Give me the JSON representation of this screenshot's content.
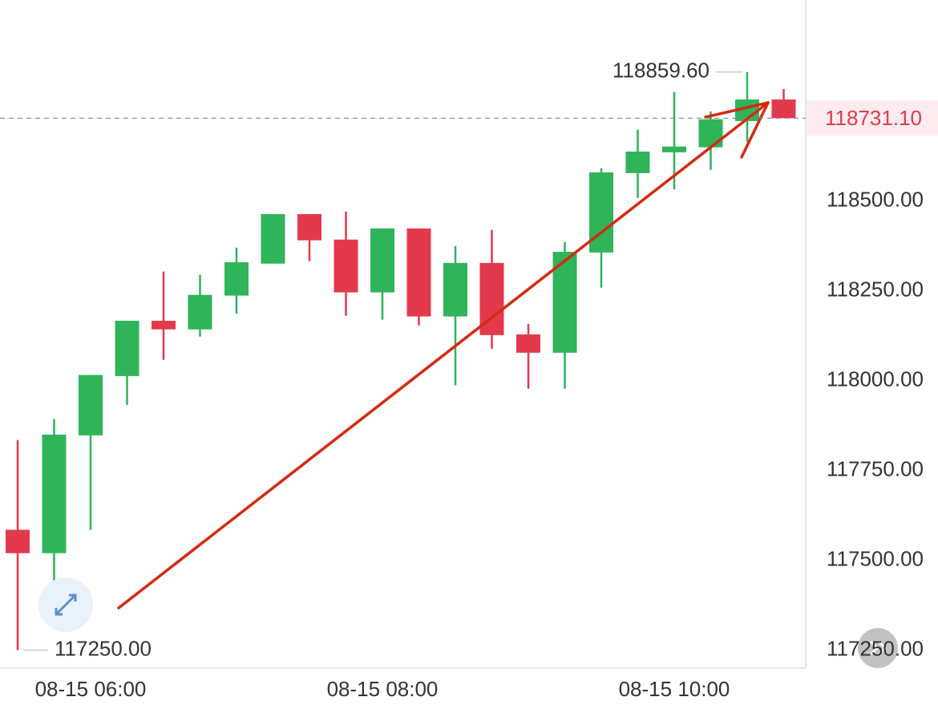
{
  "chart_data": {
    "type": "candlestick",
    "categories": [
      null,
      null,
      "08-15 06:00",
      null,
      null,
      null,
      null,
      null,
      null,
      null,
      "08-15 08:00",
      null,
      null,
      null,
      null,
      null,
      null,
      null,
      "08-15 10:00",
      null,
      null,
      null
    ],
    "open": [
      117585,
      117520,
      117848,
      118013,
      118167,
      118143,
      118237,
      118326,
      118464,
      118393,
      118246,
      118424,
      118179,
      118328,
      118129,
      118078,
      118357,
      118578,
      118636,
      118650,
      118723,
      118783
    ],
    "high": [
      117835,
      117893,
      118016,
      118167,
      118304,
      118295,
      118371,
      118464,
      118464,
      118471,
      118424,
      118424,
      118375,
      118420,
      118158,
      118386,
      118592,
      118699,
      118804,
      118750,
      118859.6,
      118812
    ],
    "low": [
      117250,
      117406,
      117585,
      117933,
      118058,
      118123,
      118187,
      118326,
      118333,
      118181,
      118170,
      118154,
      117987,
      118089,
      117978,
      117978,
      118259,
      118509,
      118533,
      118587,
      118665,
      118731.1
    ],
    "close": [
      117520,
      117850,
      118016,
      118167,
      118143,
      118239,
      118330,
      118464,
      118391,
      118246,
      118424,
      118179,
      118328,
      118127,
      118078,
      118359,
      118580,
      118638,
      118652,
      118728,
      118783,
      118731.1
    ],
    "up_color": "#2fb45a",
    "down_color": "#e3394d",
    "ylim": [
      117200,
      119060
    ],
    "yticks": [
      {
        "value": 117250,
        "label": "117250.00"
      },
      {
        "value": 117500,
        "label": "117500.00"
      },
      {
        "value": 117750,
        "label": "117750.00"
      },
      {
        "value": 118000,
        "label": "118000.00"
      },
      {
        "value": 118250,
        "label": "118250.00"
      },
      {
        "value": 118500,
        "label": "118500.00"
      }
    ],
    "grid": false,
    "high_label": {
      "value": 118859.6,
      "label": "118859.60"
    },
    "low_label": {
      "value": 117250,
      "label": "117250.00"
    },
    "last_price": {
      "value": 118731.1,
      "label": "118731.10"
    }
  }
}
